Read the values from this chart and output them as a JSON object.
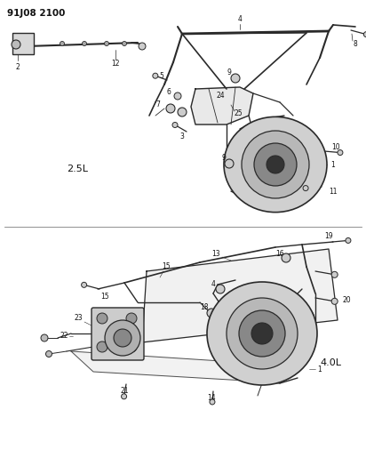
{
  "title": "91J08 2100",
  "bg_color": "#ffffff",
  "dc": "#2a2a2a",
  "tc": "#111111",
  "lc": "#888888",
  "label_2_5L": "2.5L",
  "label_4_0L": "4.0L",
  "fig_w": 4.12,
  "fig_h": 5.33,
  "dpi": 100
}
